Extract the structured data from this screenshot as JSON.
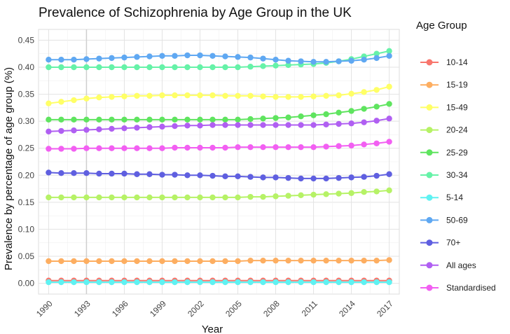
{
  "chart_data": {
    "type": "line",
    "title": "Prevalence of Schizophrenia by Age Group in the UK",
    "xlabel": "Year",
    "ylabel": "Prevalence by percentage of age group (%)",
    "legend_title": "Age Group",
    "legend_position": "right",
    "grid": true,
    "xlim": [
      1989.2,
      2017.8
    ],
    "ylim": [
      -0.02,
      0.47
    ],
    "x_ticks": [
      "1990",
      "1993",
      "1996",
      "1999",
      "2002",
      "2005",
      "2008",
      "2011",
      "2014",
      "2017"
    ],
    "y_ticks": [
      "0.00",
      "0.05",
      "0.10",
      "0.15",
      "0.20",
      "0.25",
      "0.30",
      "0.35",
      "0.40",
      "0.45"
    ],
    "x": [
      1990,
      1991,
      1992,
      1993,
      1994,
      1995,
      1996,
      1997,
      1998,
      1999,
      2000,
      2001,
      2002,
      2003,
      2004,
      2005,
      2006,
      2007,
      2008,
      2009,
      2010,
      2011,
      2012,
      2013,
      2014,
      2015,
      2016,
      2017
    ],
    "series": [
      {
        "name": "10-14",
        "color": "#f8766d",
        "values": [
          0.005,
          0.005,
          0.005,
          0.005,
          0.005,
          0.005,
          0.005,
          0.005,
          0.005,
          0.005,
          0.005,
          0.005,
          0.005,
          0.005,
          0.005,
          0.005,
          0.005,
          0.005,
          0.005,
          0.005,
          0.005,
          0.005,
          0.005,
          0.005,
          0.005,
          0.005,
          0.005,
          0.005
        ]
      },
      {
        "name": "15-19",
        "color": "#fdae61",
        "values": [
          0.041,
          0.041,
          0.041,
          0.041,
          0.041,
          0.041,
          0.041,
          0.041,
          0.041,
          0.041,
          0.041,
          0.041,
          0.041,
          0.041,
          0.041,
          0.041,
          0.042,
          0.042,
          0.042,
          0.042,
          0.042,
          0.042,
          0.042,
          0.042,
          0.042,
          0.042,
          0.042,
          0.043
        ]
      },
      {
        "name": "15-49",
        "color": "#ffff66",
        "values": [
          0.333,
          0.336,
          0.339,
          0.342,
          0.344,
          0.345,
          0.346,
          0.347,
          0.347,
          0.348,
          0.348,
          0.348,
          0.348,
          0.348,
          0.347,
          0.347,
          0.347,
          0.346,
          0.345,
          0.345,
          0.345,
          0.346,
          0.347,
          0.348,
          0.351,
          0.354,
          0.358,
          0.364
        ]
      },
      {
        "name": "20-24",
        "color": "#b6f266",
        "values": [
          0.159,
          0.159,
          0.159,
          0.159,
          0.159,
          0.159,
          0.159,
          0.159,
          0.159,
          0.159,
          0.159,
          0.159,
          0.159,
          0.159,
          0.159,
          0.159,
          0.16,
          0.16,
          0.161,
          0.162,
          0.163,
          0.164,
          0.165,
          0.166,
          0.167,
          0.169,
          0.17,
          0.172
        ]
      },
      {
        "name": "25-29",
        "color": "#5fe45f",
        "values": [
          0.303,
          0.303,
          0.303,
          0.303,
          0.303,
          0.303,
          0.303,
          0.303,
          0.303,
          0.303,
          0.303,
          0.303,
          0.303,
          0.303,
          0.303,
          0.303,
          0.304,
          0.305,
          0.306,
          0.307,
          0.309,
          0.311,
          0.313,
          0.316,
          0.319,
          0.323,
          0.327,
          0.332
        ]
      },
      {
        "name": "30-34",
        "color": "#66f2a8",
        "values": [
          0.4,
          0.4,
          0.4,
          0.4,
          0.4,
          0.4,
          0.4,
          0.4,
          0.4,
          0.4,
          0.4,
          0.4,
          0.4,
          0.4,
          0.4,
          0.4,
          0.401,
          0.402,
          0.403,
          0.404,
          0.405,
          0.406,
          0.408,
          0.411,
          0.415,
          0.42,
          0.425,
          0.43
        ]
      },
      {
        "name": "5-14",
        "color": "#5ff2f2",
        "values": [
          0.002,
          0.002,
          0.002,
          0.002,
          0.002,
          0.002,
          0.002,
          0.002,
          0.002,
          0.002,
          0.002,
          0.002,
          0.002,
          0.002,
          0.002,
          0.002,
          0.002,
          0.002,
          0.002,
          0.002,
          0.002,
          0.002,
          0.002,
          0.002,
          0.002,
          0.002,
          0.002,
          0.002
        ]
      },
      {
        "name": "50-69",
        "color": "#5fa8f2",
        "values": [
          0.414,
          0.414,
          0.414,
          0.415,
          0.416,
          0.417,
          0.418,
          0.419,
          0.42,
          0.421,
          0.421,
          0.422,
          0.422,
          0.421,
          0.42,
          0.419,
          0.418,
          0.416,
          0.414,
          0.412,
          0.411,
          0.41,
          0.41,
          0.411,
          0.412,
          0.414,
          0.417,
          0.421
        ]
      },
      {
        "name": "70+",
        "color": "#5f5fe0",
        "values": [
          0.205,
          0.204,
          0.204,
          0.204,
          0.203,
          0.203,
          0.203,
          0.202,
          0.202,
          0.201,
          0.201,
          0.2,
          0.2,
          0.199,
          0.198,
          0.198,
          0.197,
          0.196,
          0.196,
          0.195,
          0.194,
          0.194,
          0.194,
          0.195,
          0.196,
          0.197,
          0.199,
          0.202
        ]
      },
      {
        "name": "All ages",
        "color": "#b05ff2",
        "values": [
          0.281,
          0.282,
          0.283,
          0.284,
          0.285,
          0.286,
          0.287,
          0.288,
          0.289,
          0.29,
          0.291,
          0.292,
          0.292,
          0.293,
          0.293,
          0.293,
          0.293,
          0.293,
          0.293,
          0.293,
          0.293,
          0.293,
          0.294,
          0.295,
          0.296,
          0.298,
          0.301,
          0.305
        ]
      },
      {
        "name": "Standardised",
        "color": "#f25ff2",
        "values": [
          0.249,
          0.249,
          0.249,
          0.25,
          0.25,
          0.25,
          0.25,
          0.25,
          0.25,
          0.25,
          0.251,
          0.251,
          0.251,
          0.251,
          0.251,
          0.252,
          0.252,
          0.252,
          0.252,
          0.252,
          0.252,
          0.252,
          0.253,
          0.254,
          0.255,
          0.257,
          0.259,
          0.262
        ]
      }
    ]
  }
}
